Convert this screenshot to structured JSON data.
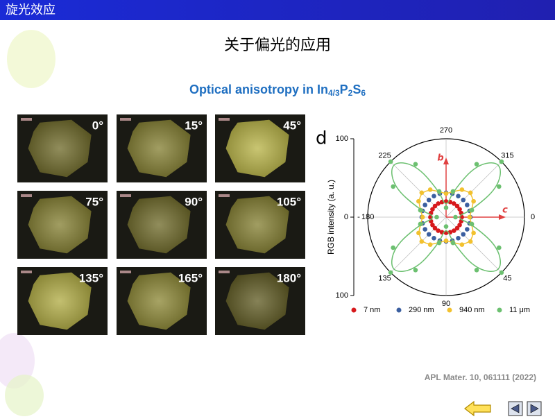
{
  "header": {
    "title": "旋光效应"
  },
  "slide": {
    "title": "关于偏光的应用",
    "subtitle_parts": [
      "Optical anisotropy in In",
      "4/3",
      "P",
      "2",
      "S",
      "6"
    ]
  },
  "micrographs": {
    "labels": [
      "0°",
      "15°",
      "45°",
      "75°",
      "90°",
      "105°",
      "135°",
      "165°",
      "180°"
    ]
  },
  "chart_data": {
    "type": "polar-scatter",
    "panel_label": "d",
    "r_label": "RGB intensity (a. u.)",
    "rlim": [
      0,
      100
    ],
    "theta_ticks": [
      0,
      45,
      90,
      135,
      180,
      225,
      270,
      315
    ],
    "theta": [
      0,
      15,
      30,
      45,
      60,
      75,
      90,
      105,
      120,
      135,
      150,
      165,
      180,
      195,
      210,
      225,
      240,
      255,
      270,
      285,
      300,
      315,
      330,
      345
    ],
    "annotations": [
      "b",
      "c"
    ],
    "series": [
      {
        "name": "7 nm",
        "color": "#d7191c",
        "fit": false,
        "values": [
          20,
          20,
          20,
          20,
          20,
          20,
          20,
          20,
          20,
          20,
          20,
          20,
          20,
          20,
          20,
          20,
          20,
          20,
          20,
          20,
          20,
          20,
          20,
          20
        ]
      },
      {
        "name": "290 nm",
        "color": "#3b5fa0",
        "fit": false,
        "values": [
          31,
          31,
          31,
          31,
          31,
          31,
          31,
          31,
          31,
          31,
          31,
          31,
          31,
          31,
          31,
          31,
          31,
          31,
          31,
          31,
          31,
          31,
          31,
          31
        ]
      },
      {
        "name": "940 nm",
        "color": "#f2c12e",
        "fit": true,
        "values": [
          30,
          33.5,
          40.5,
          44,
          40.5,
          33.5,
          30,
          33.5,
          40.5,
          44,
          40.5,
          33.5,
          30,
          33.5,
          40.5,
          44,
          40.5,
          33.5,
          30,
          33.5,
          40.5,
          44,
          40.5,
          33.5
        ]
      },
      {
        "name": "11 μm",
        "color": "#6cc070",
        "fit": true,
        "values": [
          12,
          34,
          78,
          100,
          78,
          34,
          12,
          34,
          78,
          100,
          78,
          34,
          12,
          34,
          78,
          100,
          78,
          34,
          12,
          34,
          78,
          100,
          78,
          34
        ]
      }
    ]
  },
  "citation": "APL Mater. 10, 061111 (2022)"
}
